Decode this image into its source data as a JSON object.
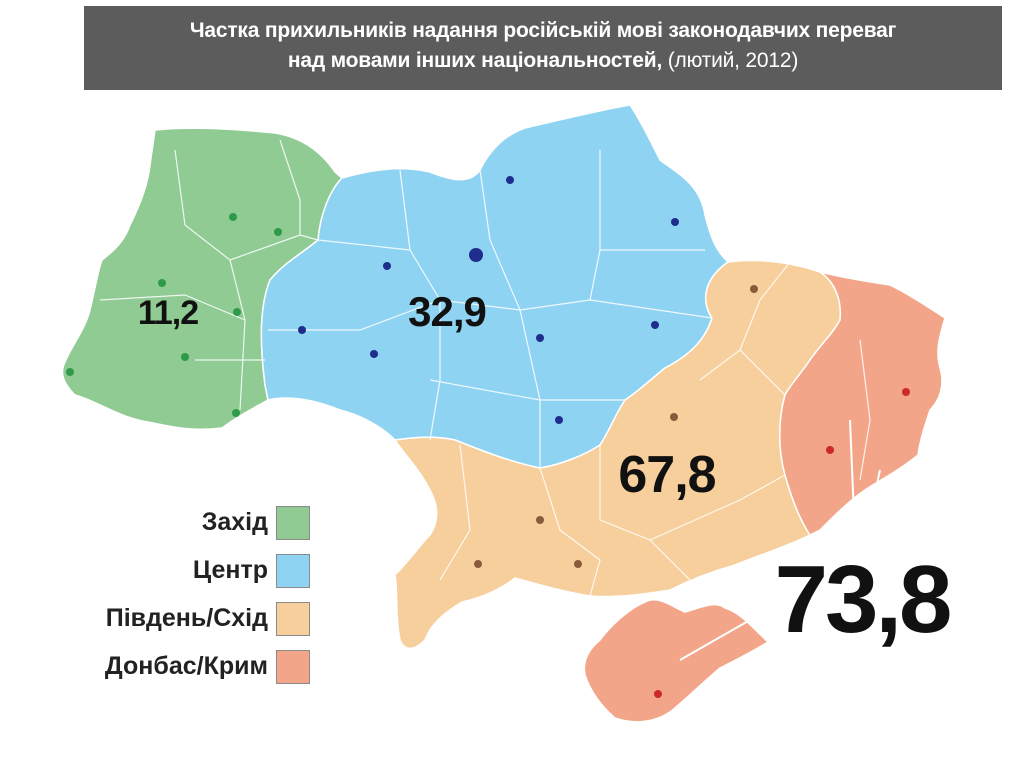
{
  "title": {
    "line1": "Частка прихильників надання російській мові законодавчих переваг",
    "line2_main": "над мовами інших національностей,",
    "line2_sub": " (лютий, 2012)"
  },
  "regions": [
    {
      "key": "west",
      "label": "Захід",
      "value": "11,2",
      "color": "#8fcb93"
    },
    {
      "key": "center",
      "label": "Центр",
      "value": "32,9",
      "color": "#8fd3f3"
    },
    {
      "key": "south_east",
      "label": "Південь/Схід",
      "value": "67,8",
      "color": "#f7cf9c"
    },
    {
      "key": "donbas_crimea",
      "label": "Донбас/Крим",
      "value": "73,8",
      "color": "#f2a588"
    }
  ],
  "dot_colors": {
    "west": "#2e9a4a",
    "center": "#1f2d8c",
    "south_east": "#8a5a3c",
    "donbas_crimea": "#cc2a2a"
  }
}
